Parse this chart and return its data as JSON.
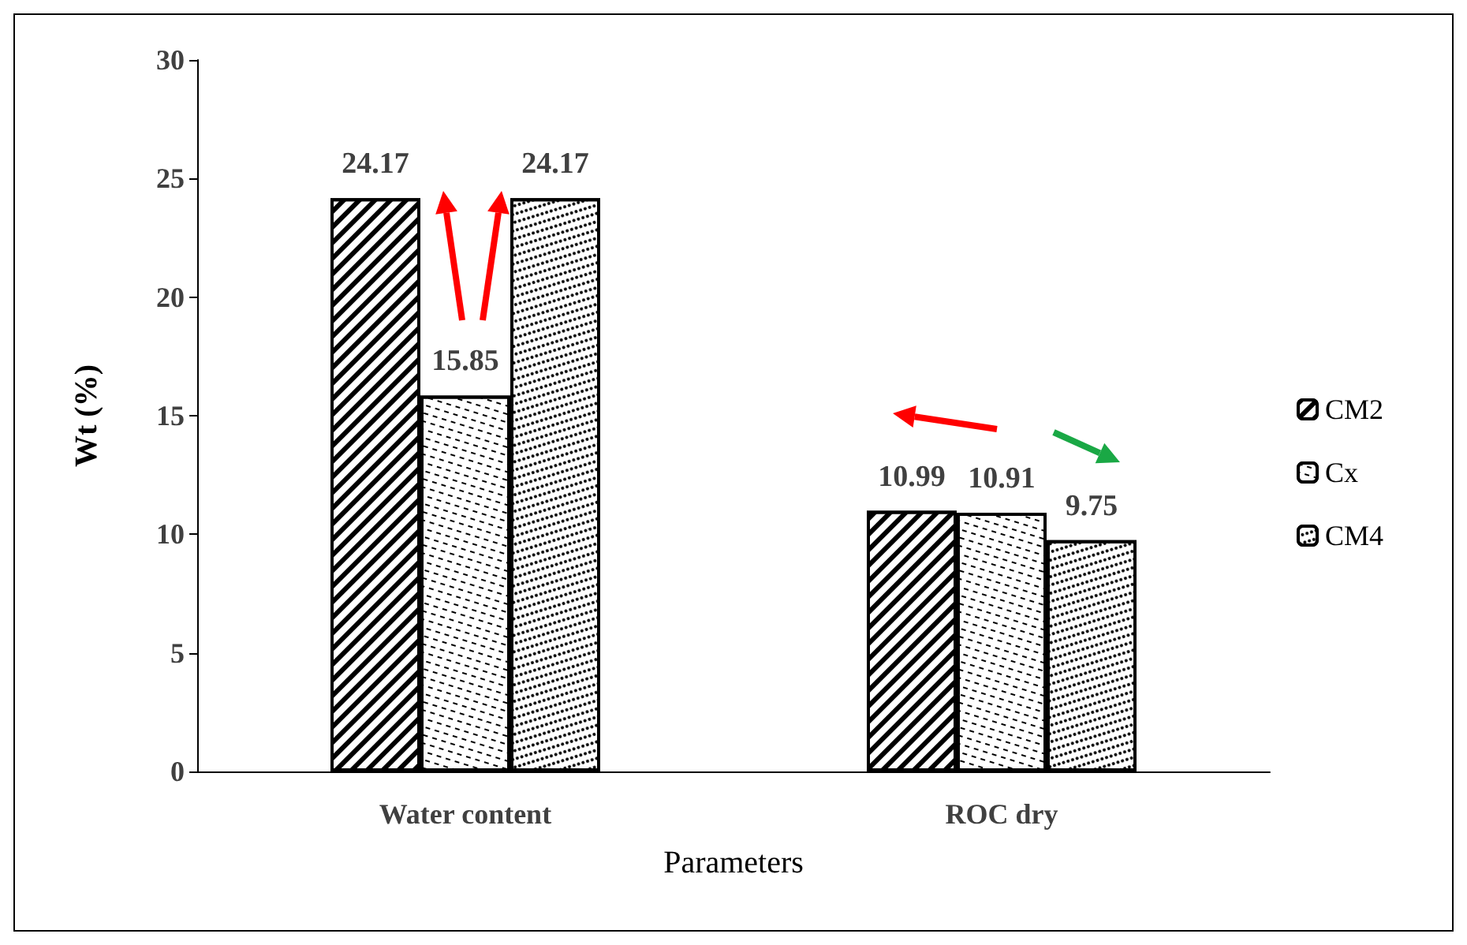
{
  "chart_data": {
    "type": "bar",
    "xlabel": "Parameters",
    "ylabel": "Wt (%)",
    "categories": [
      "Water content",
      "ROC dry"
    ],
    "series": [
      {
        "name": "CM2",
        "color": "#000000",
        "values": [
          24.17,
          10.99
        ]
      },
      {
        "name": "Cx",
        "color": "#000000",
        "values": [
          15.85,
          10.91
        ]
      },
      {
        "name": "CM4",
        "color": "#000000",
        "values": [
          24.17,
          9.75
        ]
      }
    ],
    "ylim": [
      0,
      30
    ],
    "yticks": [
      0,
      5,
      10,
      15,
      20,
      25,
      30
    ],
    "grid": false,
    "legend": "right",
    "data_labels": true
  }
}
